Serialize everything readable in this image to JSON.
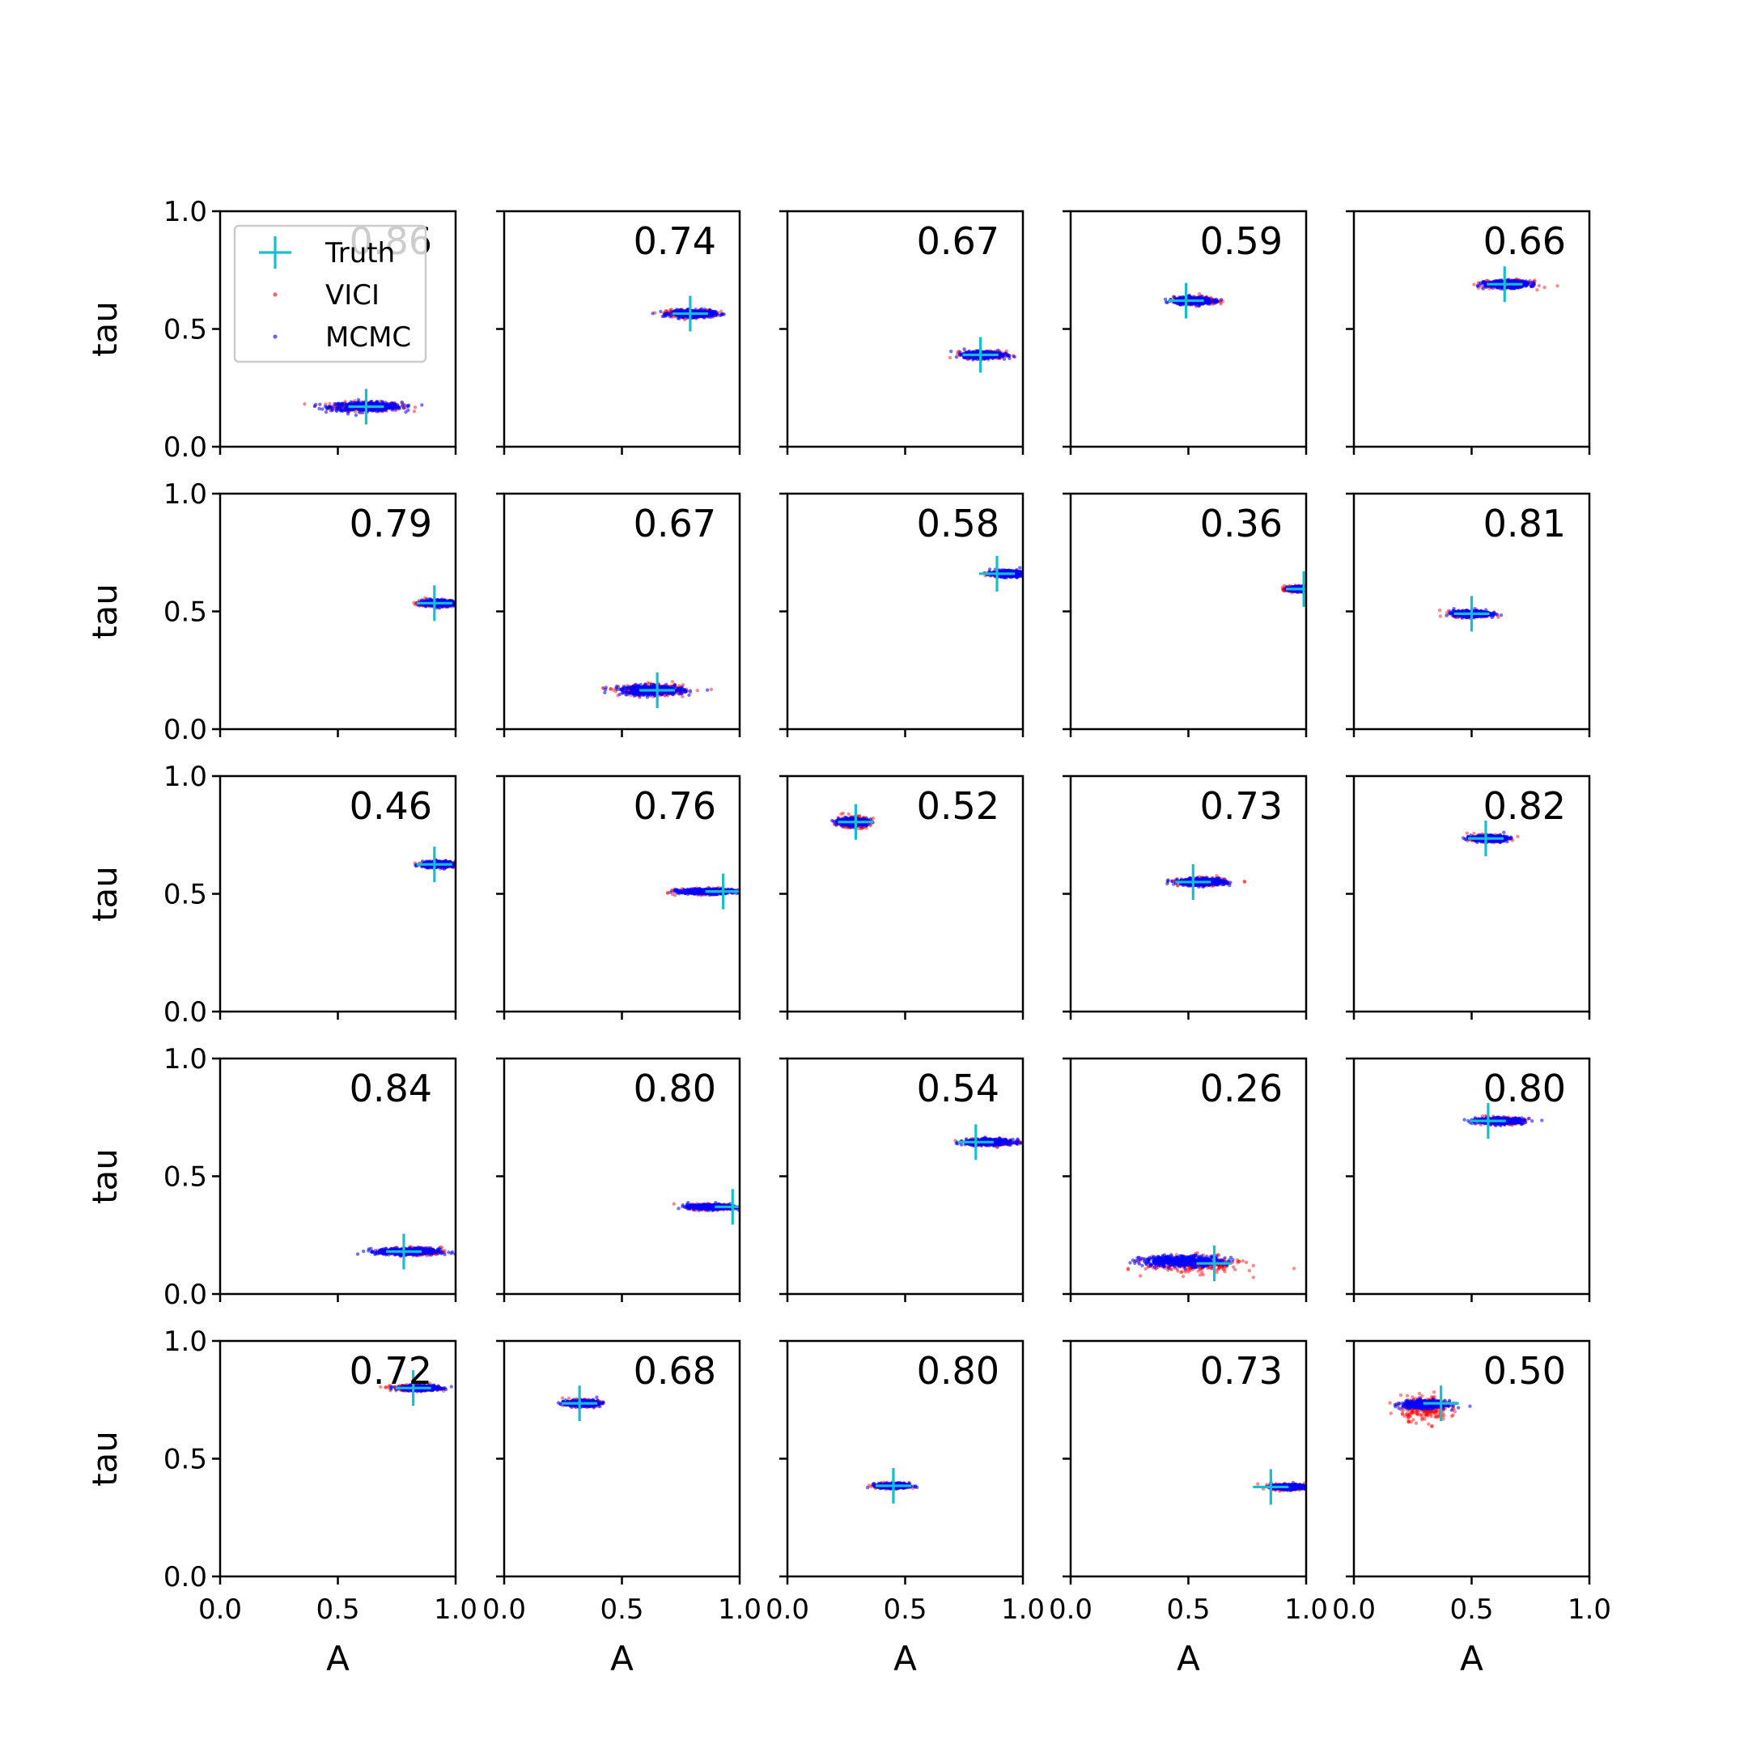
{
  "legend": {
    "placement": "upper-left of first panel",
    "entries": [
      {
        "label": "Truth",
        "marker": "plus",
        "color": "#17becf"
      },
      {
        "label": "VICI",
        "marker": "dot",
        "color": "#ff0000"
      },
      {
        "label": "MCMC",
        "marker": "dot",
        "color": "#0000ff"
      }
    ]
  },
  "chart_data": {
    "type": "scatter",
    "grid": false,
    "rows": 5,
    "cols": 5,
    "xlabel": "A",
    "ylabel": "tau",
    "xlim": [
      0,
      1
    ],
    "ylim": [
      0,
      1
    ],
    "xticks": [
      "0.0",
      "0.5",
      "1.0"
    ],
    "yticks": [
      "0.0",
      "0.5",
      "1.0"
    ],
    "colors": {
      "truth": "#17becf",
      "vici": "#ff0000",
      "mcmc": "#0000ff"
    },
    "panels": [
      {
        "overlap": "0.86",
        "truth": [
          0.62,
          0.17
        ],
        "vici": {
          "cx": 0.62,
          "cy": 0.17,
          "sx": 0.075,
          "sy": 0.01
        },
        "mcmc": {
          "cx": 0.62,
          "cy": 0.17,
          "sx": 0.075,
          "sy": 0.009
        }
      },
      {
        "overlap": "0.74",
        "truth": [
          0.79,
          0.565
        ],
        "vici": {
          "cx": 0.79,
          "cy": 0.565,
          "sx": 0.05,
          "sy": 0.008
        },
        "mcmc": {
          "cx": 0.8,
          "cy": 0.565,
          "sx": 0.045,
          "sy": 0.007
        }
      },
      {
        "overlap": "0.67",
        "truth": [
          0.82,
          0.39
        ],
        "vici": {
          "cx": 0.84,
          "cy": 0.39,
          "sx": 0.045,
          "sy": 0.008
        },
        "mcmc": {
          "cx": 0.83,
          "cy": 0.39,
          "sx": 0.04,
          "sy": 0.007
        }
      },
      {
        "overlap": "0.59",
        "truth": [
          0.49,
          0.62
        ],
        "vici": {
          "cx": 0.53,
          "cy": 0.62,
          "sx": 0.045,
          "sy": 0.008
        },
        "mcmc": {
          "cx": 0.52,
          "cy": 0.62,
          "sx": 0.04,
          "sy": 0.007
        }
      },
      {
        "overlap": "0.66",
        "truth": [
          0.64,
          0.69
        ],
        "vici": {
          "cx": 0.65,
          "cy": 0.69,
          "sx": 0.05,
          "sy": 0.008
        },
        "mcmc": {
          "cx": 0.65,
          "cy": 0.69,
          "sx": 0.045,
          "sy": 0.007
        }
      },
      {
        "overlap": "0.79",
        "truth": [
          0.91,
          0.535
        ],
        "vici": {
          "cx": 0.92,
          "cy": 0.535,
          "sx": 0.04,
          "sy": 0.007
        },
        "mcmc": {
          "cx": 0.93,
          "cy": 0.535,
          "sx": 0.035,
          "sy": 0.006
        }
      },
      {
        "overlap": "0.67",
        "truth": [
          0.65,
          0.165
        ],
        "vici": {
          "cx": 0.63,
          "cy": 0.165,
          "sx": 0.07,
          "sy": 0.011
        },
        "mcmc": {
          "cx": 0.63,
          "cy": 0.165,
          "sx": 0.065,
          "sy": 0.01
        }
      },
      {
        "overlap": "0.58",
        "truth": [
          0.89,
          0.66
        ],
        "vici": {
          "cx": 0.93,
          "cy": 0.66,
          "sx": 0.035,
          "sy": 0.006
        },
        "mcmc": {
          "cx": 0.93,
          "cy": 0.66,
          "sx": 0.03,
          "sy": 0.006
        }
      },
      {
        "overlap": "0.36",
        "truth": [
          0.99,
          0.595
        ],
        "vici": {
          "cx": 0.96,
          "cy": 0.595,
          "sx": 0.025,
          "sy": 0.006
        },
        "mcmc": {
          "cx": 0.97,
          "cy": 0.595,
          "sx": 0.02,
          "sy": 0.005
        }
      },
      {
        "overlap": "0.81",
        "truth": [
          0.5,
          0.49
        ],
        "vici": {
          "cx": 0.5,
          "cy": 0.49,
          "sx": 0.04,
          "sy": 0.007
        },
        "mcmc": {
          "cx": 0.5,
          "cy": 0.49,
          "sx": 0.038,
          "sy": 0.006
        }
      },
      {
        "overlap": "0.46",
        "truth": [
          0.91,
          0.625
        ],
        "vici": {
          "cx": 0.93,
          "cy": 0.625,
          "sx": 0.035,
          "sy": 0.006
        },
        "mcmc": {
          "cx": 0.93,
          "cy": 0.625,
          "sx": 0.035,
          "sy": 0.006
        }
      },
      {
        "overlap": "0.76",
        "truth": [
          0.93,
          0.51
        ],
        "vici": {
          "cx": 0.86,
          "cy": 0.51,
          "sx": 0.06,
          "sy": 0.006
        },
        "mcmc": {
          "cx": 0.86,
          "cy": 0.51,
          "sx": 0.06,
          "sy": 0.005
        }
      },
      {
        "overlap": "0.52",
        "truth": [
          0.29,
          0.805
        ],
        "vici": {
          "cx": 0.28,
          "cy": 0.805,
          "sx": 0.035,
          "sy": 0.012
        },
        "mcmc": {
          "cx": 0.28,
          "cy": 0.805,
          "sx": 0.03,
          "sy": 0.007
        }
      },
      {
        "overlap": "0.73",
        "truth": [
          0.52,
          0.55
        ],
        "vici": {
          "cx": 0.56,
          "cy": 0.55,
          "sx": 0.05,
          "sy": 0.008
        },
        "mcmc": {
          "cx": 0.56,
          "cy": 0.55,
          "sx": 0.048,
          "sy": 0.007
        }
      },
      {
        "overlap": "0.82",
        "truth": [
          0.56,
          0.735
        ],
        "vici": {
          "cx": 0.57,
          "cy": 0.735,
          "sx": 0.038,
          "sy": 0.007
        },
        "mcmc": {
          "cx": 0.57,
          "cy": 0.735,
          "sx": 0.035,
          "sy": 0.006
        }
      },
      {
        "overlap": "0.84",
        "truth": [
          0.78,
          0.18
        ],
        "vici": {
          "cx": 0.82,
          "cy": 0.18,
          "sx": 0.06,
          "sy": 0.008
        },
        "mcmc": {
          "cx": 0.8,
          "cy": 0.18,
          "sx": 0.065,
          "sy": 0.007
        }
      },
      {
        "overlap": "0.80",
        "truth": [
          0.97,
          0.37
        ],
        "vici": {
          "cx": 0.89,
          "cy": 0.37,
          "sx": 0.05,
          "sy": 0.006
        },
        "mcmc": {
          "cx": 0.88,
          "cy": 0.37,
          "sx": 0.05,
          "sy": 0.005
        }
      },
      {
        "overlap": "0.54",
        "truth": [
          0.8,
          0.645
        ],
        "vici": {
          "cx": 0.86,
          "cy": 0.645,
          "sx": 0.05,
          "sy": 0.007
        },
        "mcmc": {
          "cx": 0.86,
          "cy": 0.645,
          "sx": 0.05,
          "sy": 0.006
        }
      },
      {
        "overlap": "0.26",
        "truth": [
          0.61,
          0.13
        ],
        "vici": {
          "cx": 0.52,
          "cy": 0.125,
          "sx": 0.1,
          "sy": 0.018
        },
        "mcmc": {
          "cx": 0.47,
          "cy": 0.14,
          "sx": 0.085,
          "sy": 0.011
        }
      },
      {
        "overlap": "0.80",
        "truth": [
          0.57,
          0.735
        ],
        "vici": {
          "cx": 0.62,
          "cy": 0.735,
          "sx": 0.05,
          "sy": 0.007
        },
        "mcmc": {
          "cx": 0.62,
          "cy": 0.735,
          "sx": 0.05,
          "sy": 0.006
        }
      },
      {
        "overlap": "0.72",
        "truth": [
          0.82,
          0.8
        ],
        "vici": {
          "cx": 0.83,
          "cy": 0.8,
          "sx": 0.05,
          "sy": 0.006
        },
        "mcmc": {
          "cx": 0.85,
          "cy": 0.8,
          "sx": 0.04,
          "sy": 0.005
        }
      },
      {
        "overlap": "0.68",
        "truth": [
          0.32,
          0.735
        ],
        "vici": {
          "cx": 0.33,
          "cy": 0.735,
          "sx": 0.035,
          "sy": 0.007
        },
        "mcmc": {
          "cx": 0.33,
          "cy": 0.735,
          "sx": 0.033,
          "sy": 0.006
        }
      },
      {
        "overlap": "0.80",
        "truth": [
          0.45,
          0.385
        ],
        "vici": {
          "cx": 0.45,
          "cy": 0.385,
          "sx": 0.035,
          "sy": 0.006
        },
        "mcmc": {
          "cx": 0.45,
          "cy": 0.385,
          "sx": 0.033,
          "sy": 0.005
        }
      },
      {
        "overlap": "0.73",
        "truth": [
          0.85,
          0.38
        ],
        "vici": {
          "cx": 0.93,
          "cy": 0.38,
          "sx": 0.04,
          "sy": 0.006
        },
        "mcmc": {
          "cx": 0.93,
          "cy": 0.38,
          "sx": 0.04,
          "sy": 0.005
        }
      },
      {
        "overlap": "0.50",
        "truth": [
          0.37,
          0.735
        ],
        "vici": {
          "cx": 0.3,
          "cy": 0.715,
          "sx": 0.05,
          "sy": 0.025
        },
        "mcmc": {
          "cx": 0.3,
          "cy": 0.73,
          "sx": 0.045,
          "sy": 0.008
        }
      }
    ]
  }
}
